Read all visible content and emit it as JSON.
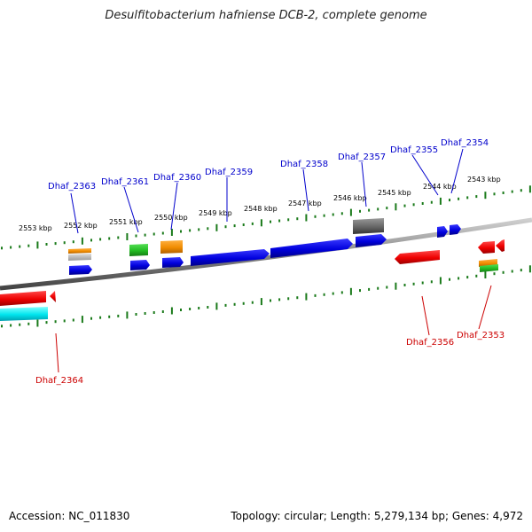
{
  "title": "Desulfitobacterium hafniense DCB-2, complete genome",
  "accession": "Accession: NC_011830",
  "summary": "Topology: circular; Length: 5,279,134 bp; Genes: 4,972",
  "scale_labels": [
    "2553 kbp",
    "2552 kbp",
    "2551 kbp",
    "2550 kbp",
    "2549 kbp",
    "2548 kbp",
    "2547 kbp",
    "2546 kbp",
    "2545 kbp",
    "2544 kbp",
    "2543 kbp"
  ],
  "top_labels": [
    "Dhaf_2363",
    "Dhaf_2361",
    "Dhaf_2360",
    "Dhaf_2359",
    "Dhaf_2358",
    "Dhaf_2357",
    "Dhaf_2355",
    "Dhaf_2354"
  ],
  "bottom_labels": [
    "Dhaf_2364",
    "Dhaf_2356",
    "Dhaf_2353"
  ],
  "colors": {
    "forward_label": "#0000cc",
    "reverse_label": "#cc0000",
    "tick": "#1a7a1a",
    "backbone": "#888888",
    "cds_forward": "#0000e0",
    "cds_reverse": "#ee0000",
    "gene_orange": "#f08c00",
    "gene_green": "#22bb22",
    "gene_gray": "#666666",
    "gene_cyan": "#00e5ee"
  }
}
